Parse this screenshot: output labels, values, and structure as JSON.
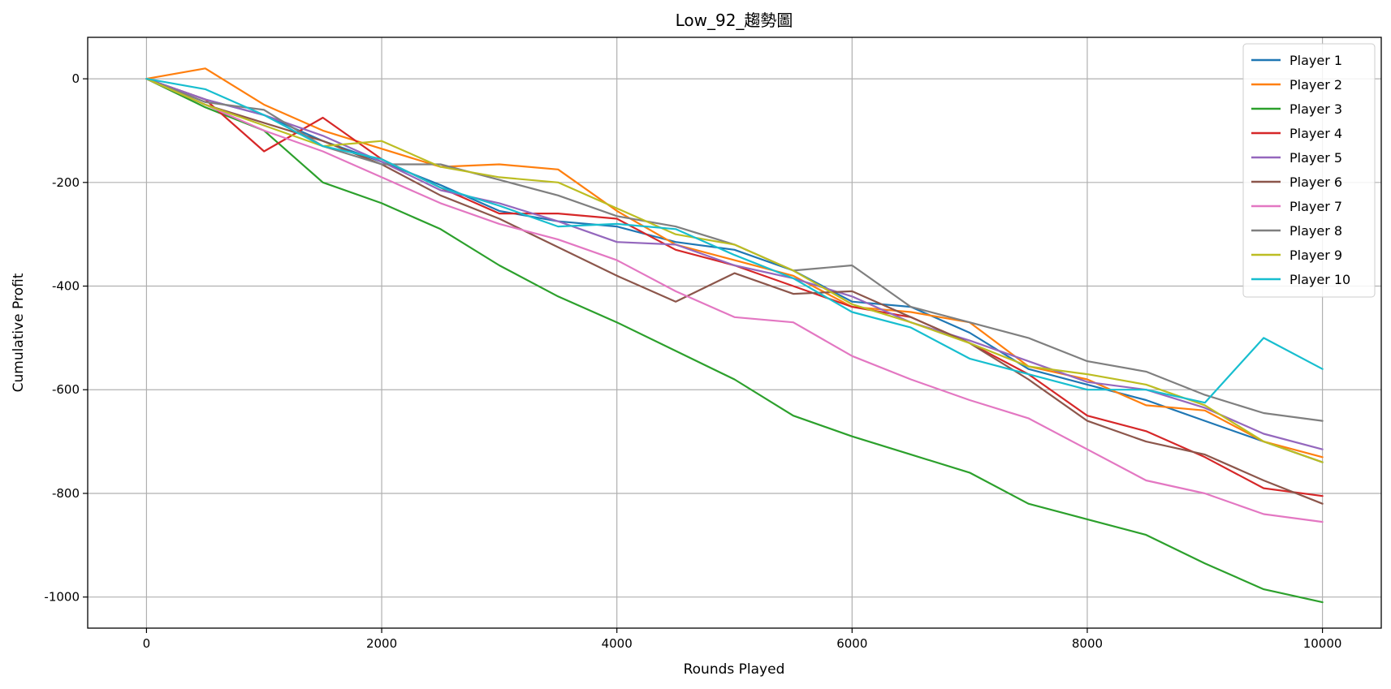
{
  "chart_data": {
    "type": "line",
    "title": "Low_92_趨勢圖",
    "xlabel": "Rounds Played",
    "ylabel": "Cumulative Profit",
    "xlim": [
      -500,
      10500
    ],
    "ylim": [
      -1060,
      80
    ],
    "x_ticks": [
      0,
      2000,
      4000,
      6000,
      8000,
      10000
    ],
    "y_ticks": [
      0,
      -200,
      -400,
      -600,
      -800,
      -1000
    ],
    "x_tick_labels": [
      "0",
      "2000",
      "4000",
      "6000",
      "8000",
      "10000"
    ],
    "y_tick_labels": [
      "0",
      "-200",
      "-400",
      "-600",
      "-800",
      "-1000"
    ],
    "grid": true,
    "legend_position": "top-right",
    "x": [
      0,
      500,
      1000,
      1500,
      2000,
      2500,
      3000,
      3500,
      4000,
      4500,
      5000,
      5500,
      6000,
      6500,
      7000,
      7500,
      8000,
      8500,
      9000,
      9500,
      10000
    ],
    "series": [
      {
        "name": "Player 1",
        "color": "#1f77b4",
        "values": [
          0,
          -40,
          -70,
          -120,
          -160,
          -205,
          -255,
          -275,
          -285,
          -315,
          -330,
          -370,
          -430,
          -440,
          -490,
          -560,
          -590,
          -620,
          -660,
          -700,
          -740
        ]
      },
      {
        "name": "Player 2",
        "color": "#ff7f0e",
        "values": [
          0,
          20,
          -50,
          -100,
          -135,
          -170,
          -165,
          -175,
          -255,
          -320,
          -350,
          -380,
          -440,
          -450,
          -470,
          -555,
          -580,
          -630,
          -640,
          -700,
          -730
        ]
      },
      {
        "name": "Player 3",
        "color": "#2ca02c",
        "values": [
          0,
          -55,
          -100,
          -200,
          -240,
          -290,
          -360,
          -420,
          -470,
          -525,
          -580,
          -650,
          -690,
          -725,
          -760,
          -820,
          -850,
          -880,
          -935,
          -985,
          -1010
        ]
      },
      {
        "name": "Player 4",
        "color": "#d62728",
        "values": [
          0,
          -40,
          -140,
          -75,
          -155,
          -210,
          -260,
          -260,
          -270,
          -330,
          -360,
          -400,
          -440,
          -460,
          -510,
          -570,
          -650,
          -680,
          -730,
          -790,
          -805
        ]
      },
      {
        "name": "Player 5",
        "color": "#9467bd",
        "values": [
          0,
          -40,
          -70,
          -110,
          -160,
          -215,
          -240,
          -275,
          -315,
          -320,
          -360,
          -385,
          -420,
          -470,
          -505,
          -545,
          -585,
          -600,
          -635,
          -685,
          -715
        ]
      },
      {
        "name": "Player 6",
        "color": "#8c564b",
        "values": [
          0,
          -50,
          -85,
          -120,
          -165,
          -225,
          -270,
          -325,
          -380,
          -430,
          -375,
          -415,
          -410,
          -460,
          -510,
          -580,
          -660,
          -700,
          -725,
          -775,
          -820
        ]
      },
      {
        "name": "Player 7",
        "color": "#e377c2",
        "values": [
          0,
          -50,
          -100,
          -140,
          -190,
          -240,
          -280,
          -310,
          -350,
          -410,
          -460,
          -470,
          -535,
          -580,
          -620,
          -655,
          -715,
          -775,
          -800,
          -840,
          -855
        ]
      },
      {
        "name": "Player 8",
        "color": "#7f7f7f",
        "values": [
          0,
          -45,
          -60,
          -130,
          -165,
          -165,
          -195,
          -225,
          -265,
          -285,
          -320,
          -370,
          -360,
          -440,
          -470,
          -500,
          -545,
          -565,
          -610,
          -645,
          -660
        ]
      },
      {
        "name": "Player 9",
        "color": "#bcbd22",
        "values": [
          0,
          -50,
          -90,
          -130,
          -120,
          -170,
          -190,
          -200,
          -250,
          -300,
          -320,
          -370,
          -435,
          -470,
          -510,
          -555,
          -570,
          -590,
          -630,
          -700,
          -740
        ]
      },
      {
        "name": "Player 10",
        "color": "#17becf",
        "values": [
          0,
          -20,
          -70,
          -130,
          -155,
          -210,
          -245,
          -285,
          -280,
          -290,
          -340,
          -385,
          -450,
          -480,
          -540,
          -570,
          -600,
          -600,
          -625,
          -500,
          -560
        ]
      }
    ]
  }
}
